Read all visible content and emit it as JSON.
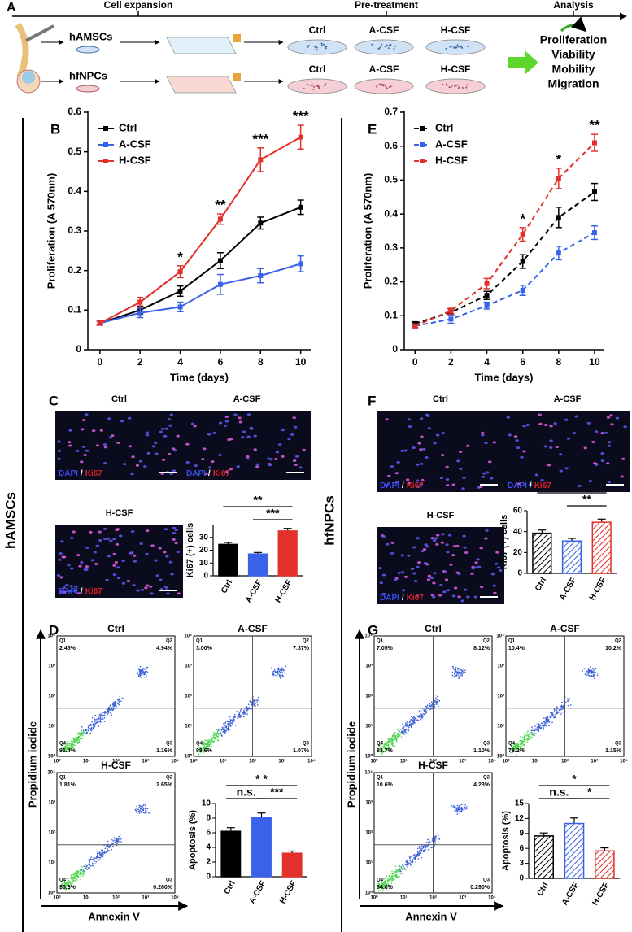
{
  "panel_letters": [
    "A",
    "B",
    "C",
    "D",
    "E",
    "F",
    "G"
  ],
  "side_labels": [
    "hAMSCs",
    "hfNPCs"
  ],
  "schematic": {
    "stages": [
      "Cell expansion",
      "Pre-treatment",
      "Analysis"
    ],
    "rows": [
      "hAMSCs",
      "hfNPCs"
    ],
    "conditions": [
      "Ctrl",
      "A-CSF",
      "H-CSF"
    ],
    "analyses": [
      "Proliferation",
      "Viability",
      "Mobility",
      "Migration"
    ]
  },
  "micrograph_titles": [
    "Ctrl",
    "A-CSF",
    "H-CSF"
  ],
  "stain": [
    "DAPI",
    "/",
    "Ki67"
  ],
  "flow": {
    "y_label": "Propidium iodide",
    "x_label": "Annexin V",
    "ticks": [
      "10⁰",
      "10¹",
      "10²",
      "10³",
      "10⁴"
    ],
    "quadrants": [
      "Q1",
      "Q2",
      "Q3",
      "Q4"
    ],
    "plots": [
      {
        "title": "Ctrl",
        "percents": [
          "2.45%",
          "4.94%",
          "1.16%",
          "91.4%"
        ]
      },
      {
        "title": "A-CSF",
        "percents": [
          "3.00%",
          "7.37%",
          "1.07%",
          "88.6%"
        ]
      },
      {
        "title": "H-CSF",
        "percents": [
          "1.81%",
          "2.65%",
          "0.260%",
          "95.3%"
        ]
      },
      {
        "title": "Ctrl",
        "percents": [
          "7.05%",
          "8.12%",
          "1.10%",
          "83.7%"
        ]
      },
      {
        "title": "A-CSF",
        "percents": [
          "10.4%",
          "10.2%",
          "1.15%",
          "78.2%"
        ]
      },
      {
        "title": "H-CSF",
        "percents": [
          "10.6%",
          "4.23%",
          "0.290%",
          "84.8%"
        ]
      }
    ]
  },
  "chart_data": [
    {
      "type": "line",
      "y_label": "Proliferation (A 570nm)",
      "x_label": "Time (days)",
      "x": [
        0,
        2,
        4,
        6,
        8,
        10
      ],
      "xlim": [
        -0.6,
        10.5
      ],
      "xticks": [
        0,
        2,
        4,
        6,
        8,
        10
      ],
      "ylim": [
        0,
        0.6
      ],
      "yticks": [
        0,
        0.1,
        0.2,
        0.3,
        0.4,
        0.5,
        0.6
      ],
      "legend": "upper left",
      "line_style": "solid",
      "series": [
        {
          "name": "Ctrl",
          "color": "#000000",
          "values": [
            0.067,
            0.1,
            0.148,
            0.225,
            0.32,
            0.36
          ],
          "errors": [
            0.005,
            0.01,
            0.013,
            0.02,
            0.015,
            0.018
          ]
        },
        {
          "name": "A-CSF",
          "color": "#3a62e8",
          "values": [
            0.067,
            0.093,
            0.108,
            0.165,
            0.187,
            0.217
          ],
          "errors": [
            0.005,
            0.012,
            0.012,
            0.025,
            0.018,
            0.02
          ]
        },
        {
          "name": "H-CSF",
          "color": "#e3302a",
          "values": [
            0.067,
            0.12,
            0.197,
            0.33,
            0.48,
            0.537
          ],
          "errors": [
            0.005,
            0.012,
            0.015,
            0.013,
            0.03,
            0.03
          ]
        }
      ],
      "annotations": [
        null,
        null,
        "*",
        "**",
        "***",
        "***"
      ]
    },
    {
      "type": "line",
      "y_label": "Proliferation (A 570nm)",
      "x_label": "Time (days)",
      "x": [
        0,
        2,
        4,
        6,
        8,
        10
      ],
      "xlim": [
        -0.6,
        10.5
      ],
      "xticks": [
        0,
        2,
        4,
        6,
        8,
        10
      ],
      "ylim": [
        0,
        0.7
      ],
      "yticks": [
        0,
        0.1,
        0.2,
        0.3,
        0.4,
        0.5,
        0.6,
        0.7
      ],
      "legend": "upper left",
      "line_style": "dashed",
      "series": [
        {
          "name": "Ctrl",
          "color": "#000000",
          "values": [
            0.077,
            0.11,
            0.16,
            0.26,
            0.39,
            0.465
          ],
          "errors": [
            0.005,
            0.01,
            0.012,
            0.02,
            0.03,
            0.025
          ]
        },
        {
          "name": "A-CSF",
          "color": "#3a62e8",
          "values": [
            0.07,
            0.09,
            0.13,
            0.175,
            0.285,
            0.345
          ],
          "errors": [
            0.005,
            0.012,
            0.01,
            0.015,
            0.02,
            0.02
          ]
        },
        {
          "name": "H-CSF",
          "color": "#e3302a",
          "values": [
            0.07,
            0.115,
            0.195,
            0.34,
            0.505,
            0.61
          ],
          "errors": [
            0.005,
            0.01,
            0.015,
            0.02,
            0.03,
            0.025
          ]
        }
      ],
      "annotations": [
        null,
        null,
        null,
        "*",
        "*",
        "**"
      ]
    },
    {
      "type": "bar",
      "y_label": "Ki67 (+) cells",
      "categories": [
        "Ctrl",
        "A-CSF",
        "H-CSF"
      ],
      "values": [
        24.5,
        17,
        35
      ],
      "errors": [
        1.5,
        1.2,
        2
      ],
      "colors": [
        "#000000",
        "#3a62e8",
        "#e3302a"
      ],
      "hatched": false,
      "ylim": [
        0,
        40
      ],
      "yticks": [
        0,
        10,
        20,
        30
      ],
      "brackets": [
        {
          "from": 0,
          "to": 2,
          "text": "**"
        },
        {
          "from": 1,
          "to": 2,
          "text": "***"
        }
      ]
    },
    {
      "type": "bar",
      "y_label": "Ki67 (+) cells",
      "categories": [
        "Ctrl",
        "A-CSF",
        "H-CSF"
      ],
      "values": [
        38.5,
        31,
        49
      ],
      "errors": [
        3,
        2.5,
        3
      ],
      "colors": [
        "#000000",
        "#3a62e8",
        "#e3302a"
      ],
      "hatched": true,
      "ylim": [
        0,
        60
      ],
      "yticks": [
        0,
        20,
        40,
        60
      ],
      "brackets": [
        {
          "from": 0,
          "to": 2,
          "text": "*"
        },
        {
          "from": 1,
          "to": 2,
          "text": "**"
        }
      ]
    },
    {
      "type": "bar",
      "y_label": "Apoptosis (%)",
      "categories": [
        "Ctrl",
        "A-CSF",
        "H-CSF"
      ],
      "values": [
        6.2,
        8.1,
        3.2
      ],
      "errors": [
        0.5,
        0.6,
        0.3
      ],
      "colors": [
        "#000000",
        "#3a62e8",
        "#e3302a"
      ],
      "hatched": false,
      "ylim": [
        0,
        10
      ],
      "yticks": [
        0,
        2,
        4,
        6,
        8,
        10
      ],
      "brackets": [
        {
          "from": 0,
          "to": 1,
          "text": "n.s."
        },
        {
          "from": 0,
          "to": 2,
          "text": "* *"
        },
        {
          "from": 1,
          "to": 2,
          "text": "***"
        }
      ]
    },
    {
      "type": "bar",
      "y_label": "Apoptosis (%)",
      "categories": [
        "Ctrl",
        "A-CSF",
        "H-CSF"
      ],
      "values": [
        8.5,
        11,
        5.5
      ],
      "errors": [
        0.6,
        1.1,
        0.6
      ],
      "colors": [
        "#000000",
        "#3a62e8",
        "#e3302a"
      ],
      "hatched": true,
      "ylim": [
        0,
        15
      ],
      "yticks": [
        0,
        3,
        6,
        9,
        12,
        15
      ],
      "brackets": [
        {
          "from": 0,
          "to": 1,
          "text": "n.s."
        },
        {
          "from": 0,
          "to": 2,
          "text": "*"
        },
        {
          "from": 1,
          "to": 2,
          "text": "*"
        }
      ]
    }
  ]
}
